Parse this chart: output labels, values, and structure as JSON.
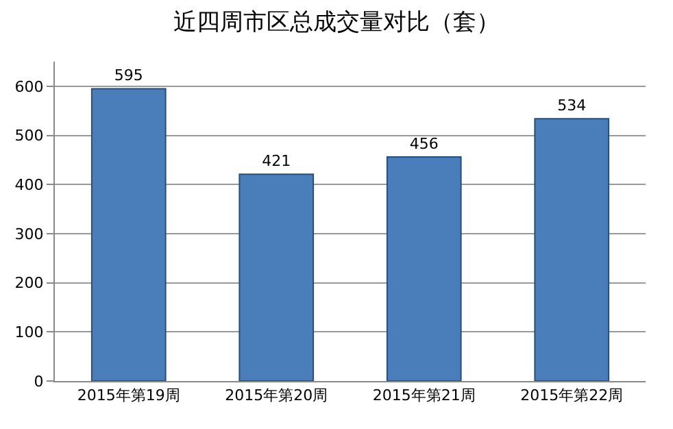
{
  "chart_data": {
    "type": "bar",
    "title": "近四周市区总成交量对比（套）",
    "categories": [
      "2015年第19周",
      "2015年第20周",
      "2015年第21周",
      "2015年第22周"
    ],
    "values": [
      595,
      421,
      456,
      534
    ],
    "color": "#4a7ebb",
    "ylim": [
      0,
      650
    ],
    "yticks": [
      0,
      100,
      200,
      300,
      400,
      500,
      600
    ],
    "grid": "y",
    "data_labels": true
  }
}
